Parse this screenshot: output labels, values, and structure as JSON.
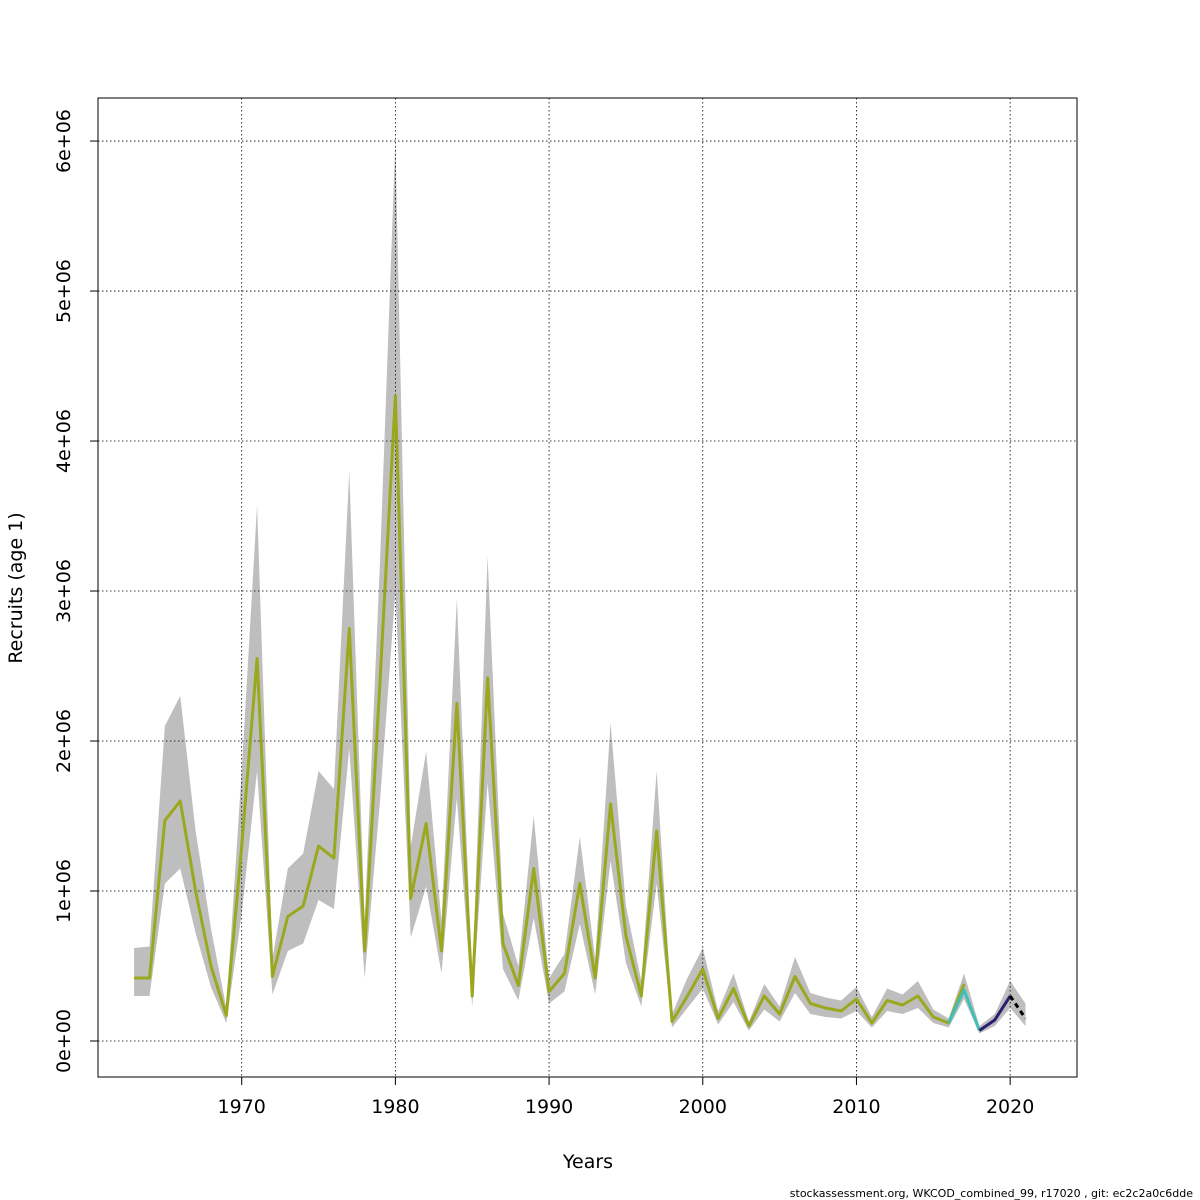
{
  "chart_data": {
    "type": "line",
    "xlabel": "Years",
    "ylabel": "Recruits (age 1)",
    "footnote": "stockassessment.org, WKCOD_combined_99, r17020 , git: ec2c2a0c6dde",
    "x": [
      1963,
      1964,
      1965,
      1966,
      1967,
      1968,
      1969,
      1970,
      1971,
      1972,
      1973,
      1974,
      1975,
      1976,
      1977,
      1978,
      1979,
      1980,
      1981,
      1982,
      1983,
      1984,
      1985,
      1986,
      1987,
      1988,
      1989,
      1990,
      1991,
      1992,
      1993,
      1994,
      1995,
      1996,
      1997,
      1998,
      1999,
      2000,
      2001,
      2002,
      2003,
      2004,
      2005,
      2006,
      2007,
      2008,
      2009,
      2010,
      2011,
      2012,
      2013,
      2014,
      2015,
      2016,
      2017,
      2018,
      2019,
      2020,
      2021
    ],
    "band": {
      "color": "#bebebe",
      "upper": [
        620000,
        630000,
        2100000,
        2300000,
        1400000,
        750000,
        220000,
        1800000,
        3570000,
        550000,
        1150000,
        1250000,
        1800000,
        1680000,
        3800000,
        800000,
        3200000,
        6000000,
        1300000,
        1930000,
        800000,
        2950000,
        400000,
        3230000,
        850000,
        500000,
        1500000,
        420000,
        580000,
        1360000,
        550000,
        2120000,
        900000,
        400000,
        1800000,
        180000,
        420000,
        620000,
        200000,
        450000,
        130000,
        380000,
        230000,
        560000,
        320000,
        290000,
        270000,
        360000,
        160000,
        350000,
        310000,
        400000,
        210000,
        150000,
        450000,
        100000,
        180000,
        400000,
        250000
      ],
      "lower": [
        300000,
        300000,
        1050000,
        1150000,
        720000,
        360000,
        120000,
        850000,
        1800000,
        310000,
        600000,
        650000,
        940000,
        880000,
        1950000,
        420000,
        1600000,
        3000000,
        690000,
        1030000,
        450000,
        1620000,
        230000,
        1720000,
        480000,
        270000,
        820000,
        250000,
        330000,
        780000,
        310000,
        1200000,
        520000,
        230000,
        1050000,
        90000,
        220000,
        350000,
        110000,
        260000,
        70000,
        210000,
        130000,
        320000,
        180000,
        160000,
        150000,
        200000,
        90000,
        200000,
        180000,
        220000,
        120000,
        90000,
        280000,
        50000,
        100000,
        220000,
        100000
      ]
    },
    "series": [
      {
        "color": "#9aa81e",
        "values": [
          420000,
          420000,
          1470000,
          1600000,
          1000000,
          500000,
          170000,
          1300000,
          2550000,
          430000,
          830000,
          900000,
          1300000,
          1220000,
          2750000,
          600000,
          2400000,
          4300000,
          950000,
          1450000,
          600000,
          2250000,
          300000,
          2420000,
          650000,
          370000,
          1150000,
          330000,
          450000,
          1050000,
          420000,
          1580000,
          700000,
          300000,
          1400000,
          130000,
          300000,
          480000,
          150000,
          350000,
          100000,
          300000,
          180000,
          430000,
          250000,
          220000,
          200000,
          280000,
          120000,
          270000,
          240000,
          300000,
          160000,
          120000,
          380000,
          null,
          null,
          null,
          null
        ]
      },
      {
        "color": "#3fbfb5",
        "values": [
          null,
          null,
          null,
          null,
          null,
          null,
          null,
          null,
          null,
          null,
          null,
          null,
          null,
          null,
          null,
          null,
          null,
          null,
          null,
          null,
          null,
          null,
          null,
          null,
          null,
          null,
          null,
          null,
          null,
          null,
          null,
          null,
          null,
          null,
          null,
          null,
          null,
          null,
          null,
          null,
          null,
          null,
          null,
          null,
          null,
          null,
          null,
          null,
          null,
          null,
          null,
          null,
          null,
          120000,
          340000,
          70000,
          null,
          null,
          null
        ]
      },
      {
        "color": "#2a1f72",
        "values": [
          null,
          null,
          null,
          null,
          null,
          null,
          null,
          null,
          null,
          null,
          null,
          null,
          null,
          null,
          null,
          null,
          null,
          null,
          null,
          null,
          null,
          null,
          null,
          null,
          null,
          null,
          null,
          null,
          null,
          null,
          null,
          null,
          null,
          null,
          null,
          null,
          null,
          null,
          null,
          null,
          null,
          null,
          null,
          null,
          null,
          null,
          null,
          null,
          null,
          null,
          null,
          null,
          null,
          null,
          null,
          70000,
          140000,
          300000,
          null
        ]
      },
      {
        "color": "#000000",
        "dashed": true,
        "values": [
          null,
          null,
          null,
          null,
          null,
          null,
          null,
          null,
          null,
          null,
          null,
          null,
          null,
          null,
          null,
          null,
          null,
          null,
          null,
          null,
          null,
          null,
          null,
          null,
          null,
          null,
          null,
          null,
          null,
          null,
          null,
          null,
          null,
          null,
          null,
          null,
          null,
          null,
          null,
          null,
          null,
          null,
          null,
          null,
          null,
          null,
          null,
          null,
          null,
          null,
          null,
          null,
          null,
          null,
          null,
          null,
          null,
          300000,
          150000
        ]
      }
    ],
    "xlim": [
      1960.65,
      2024.35
    ],
    "ylim": [
      -240000,
      6287000
    ],
    "xticks": [
      1970,
      1980,
      1990,
      2000,
      2010,
      2020
    ],
    "yticks": [
      {
        "value": 0,
        "label": "0e+00"
      },
      {
        "value": 1000000,
        "label": "1e+06"
      },
      {
        "value": 2000000,
        "label": "2e+06"
      },
      {
        "value": 3000000,
        "label": "3e+06"
      },
      {
        "value": 4000000,
        "label": "4e+06"
      },
      {
        "value": 5000000,
        "label": "5e+06"
      },
      {
        "value": 6000000,
        "label": "6e+06"
      }
    ],
    "grid": true
  }
}
